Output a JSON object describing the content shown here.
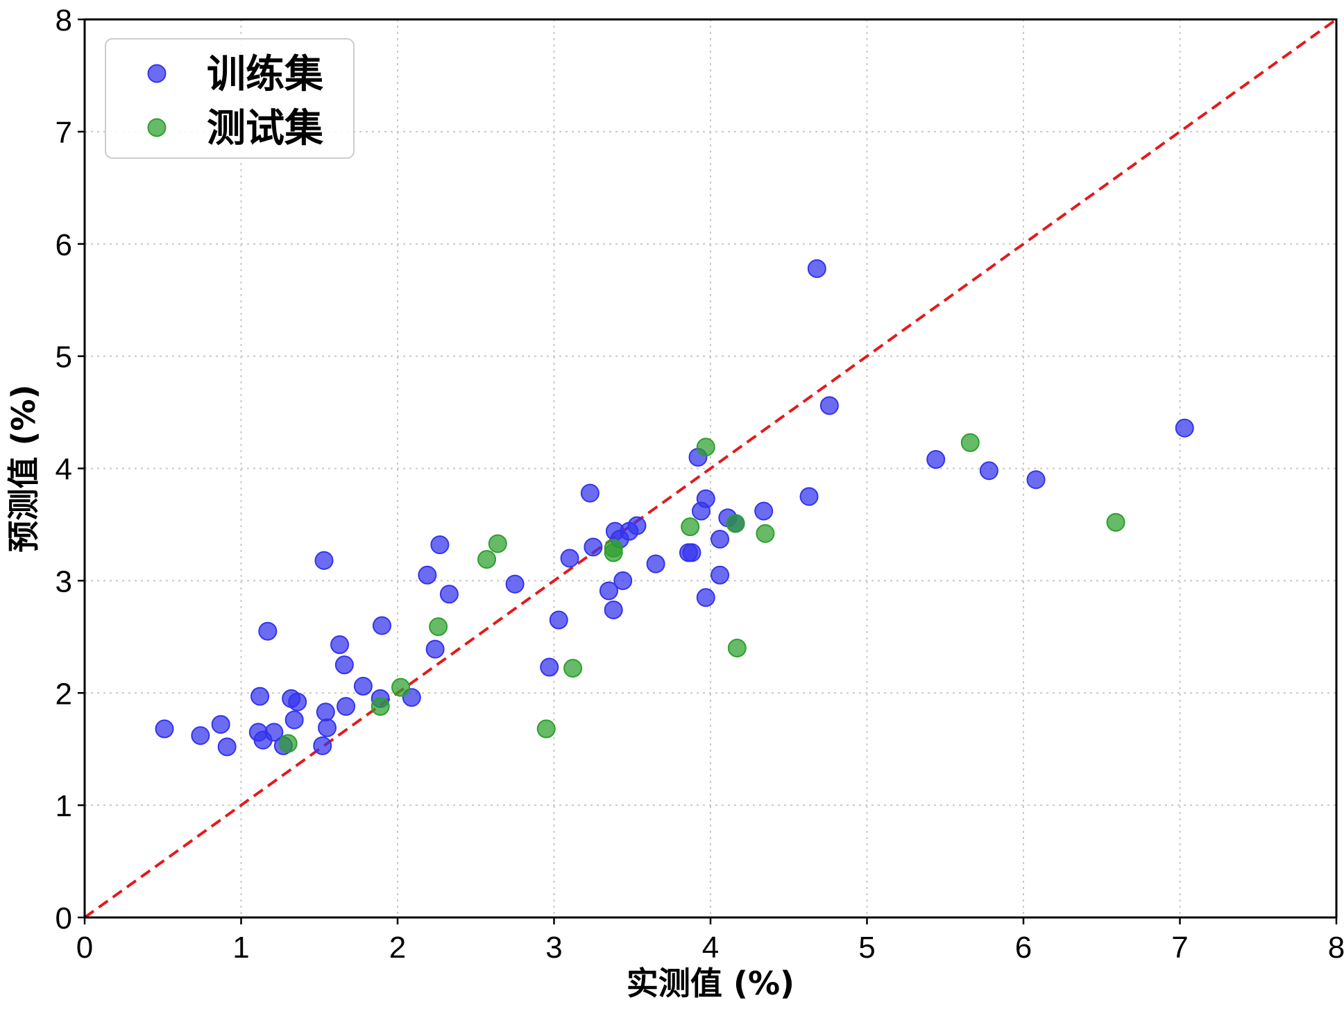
{
  "chart_data": {
    "type": "scatter",
    "title": "",
    "xlabel": "实测值 (%)",
    "ylabel": "预测值 (%)",
    "xlim": [
      0,
      8
    ],
    "ylim": [
      0,
      8
    ],
    "xticks": [
      "0",
      "1",
      "2",
      "3",
      "4",
      "5",
      "6",
      "7",
      "8"
    ],
    "yticks": [
      "0",
      "1",
      "2",
      "3",
      "4",
      "5",
      "6",
      "7",
      "8"
    ],
    "grid": true,
    "legend_position": "top-left",
    "reference_line": {
      "style": "dashed",
      "color": "#e41a1c",
      "from": [
        0,
        0
      ],
      "to": [
        8,
        8
      ]
    },
    "series": [
      {
        "name": "训练集",
        "color": "#3333ee",
        "points": [
          [
            0.51,
            1.68
          ],
          [
            0.74,
            1.62
          ],
          [
            0.87,
            1.72
          ],
          [
            0.91,
            1.52
          ],
          [
            1.11,
            1.65
          ],
          [
            1.12,
            1.97
          ],
          [
            1.14,
            1.58
          ],
          [
            1.17,
            2.55
          ],
          [
            1.21,
            1.65
          ],
          [
            1.27,
            1.53
          ],
          [
            1.32,
            1.95
          ],
          [
            1.34,
            1.76
          ],
          [
            1.36,
            1.92
          ],
          [
            1.52,
            1.53
          ],
          [
            1.53,
            3.18
          ],
          [
            1.54,
            1.83
          ],
          [
            1.55,
            1.69
          ],
          [
            1.63,
            2.43
          ],
          [
            1.66,
            2.25
          ],
          [
            1.67,
            1.88
          ],
          [
            1.78,
            2.06
          ],
          [
            1.89,
            1.95
          ],
          [
            1.9,
            2.6
          ],
          [
            2.09,
            1.96
          ],
          [
            2.19,
            3.05
          ],
          [
            2.24,
            2.39
          ],
          [
            2.27,
            3.32
          ],
          [
            2.33,
            2.88
          ],
          [
            2.75,
            2.97
          ],
          [
            2.97,
            2.23
          ],
          [
            3.03,
            2.65
          ],
          [
            3.1,
            3.2
          ],
          [
            3.23,
            3.78
          ],
          [
            3.25,
            3.3
          ],
          [
            3.35,
            2.91
          ],
          [
            3.38,
            2.74
          ],
          [
            3.39,
            3.44
          ],
          [
            3.42,
            3.37
          ],
          [
            3.44,
            3.0
          ],
          [
            3.48,
            3.44
          ],
          [
            3.53,
            3.49
          ],
          [
            3.65,
            3.15
          ],
          [
            3.86,
            3.25
          ],
          [
            3.88,
            3.25
          ],
          [
            3.92,
            4.1
          ],
          [
            3.94,
            3.62
          ],
          [
            3.97,
            2.85
          ],
          [
            3.97,
            3.73
          ],
          [
            4.06,
            3.37
          ],
          [
            4.06,
            3.05
          ],
          [
            4.11,
            3.56
          ],
          [
            4.16,
            3.51
          ],
          [
            4.34,
            3.62
          ],
          [
            4.63,
            3.75
          ],
          [
            4.68,
            5.78
          ],
          [
            4.76,
            4.56
          ],
          [
            5.44,
            4.08
          ],
          [
            5.78,
            3.98
          ],
          [
            6.08,
            3.9
          ],
          [
            7.03,
            4.36
          ]
        ]
      },
      {
        "name": "测试集",
        "color": "#2ca02c",
        "points": [
          [
            1.3,
            1.55
          ],
          [
            1.89,
            1.88
          ],
          [
            2.02,
            2.05
          ],
          [
            2.26,
            2.59
          ],
          [
            2.57,
            3.19
          ],
          [
            2.64,
            3.33
          ],
          [
            2.95,
            1.68
          ],
          [
            3.12,
            2.22
          ],
          [
            3.38,
            3.25
          ],
          [
            3.38,
            3.29
          ],
          [
            3.87,
            3.48
          ],
          [
            3.97,
            4.19
          ],
          [
            4.16,
            3.51
          ],
          [
            4.17,
            2.4
          ],
          [
            4.35,
            3.42
          ],
          [
            5.66,
            4.23
          ],
          [
            6.59,
            3.52
          ]
        ]
      }
    ]
  }
}
